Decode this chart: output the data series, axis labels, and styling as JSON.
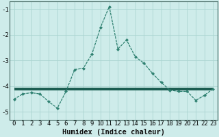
{
  "x_values": [
    0,
    1,
    2,
    3,
    4,
    5,
    6,
    7,
    8,
    9,
    10,
    11,
    12,
    13,
    14,
    15,
    16,
    17,
    18,
    19,
    20,
    21,
    22,
    23
  ],
  "y_curve": [
    -4.5,
    -4.3,
    -4.25,
    -4.3,
    -4.6,
    -4.85,
    -4.2,
    -3.35,
    -3.3,
    -2.75,
    -1.7,
    -0.9,
    -2.55,
    -2.2,
    -2.85,
    -3.1,
    -3.5,
    -3.85,
    -4.15,
    -4.2,
    -4.2,
    -4.55,
    -4.35,
    -4.1
  ],
  "y_flat": [
    -4.1,
    -4.1,
    -4.1,
    -4.1,
    -4.1,
    -4.1,
    -4.1,
    -4.1,
    -4.1,
    -4.1,
    -4.1,
    -4.1,
    -4.1,
    -4.1,
    -4.1,
    -4.1,
    -4.1,
    -4.1,
    -4.1,
    -4.1,
    -4.1,
    -4.1,
    -4.1,
    -4.1
  ],
  "line_color": "#2e8070",
  "flat_color": "#1a5c50",
  "bg_color": "#ceecea",
  "grid_color": "#aad4d0",
  "xlabel": "Humidex (Indice chaleur)",
  "ylim": [
    -5.3,
    -0.7
  ],
  "xlim": [
    -0.5,
    23.5
  ],
  "yticks": [
    -5,
    -4,
    -3,
    -2,
    -1
  ],
  "xticks": [
    0,
    1,
    2,
    3,
    4,
    5,
    6,
    7,
    8,
    9,
    10,
    11,
    12,
    13,
    14,
    15,
    16,
    17,
    18,
    19,
    20,
    21,
    22,
    23
  ],
  "label_fontsize": 7.5,
  "tick_fontsize": 6.5
}
